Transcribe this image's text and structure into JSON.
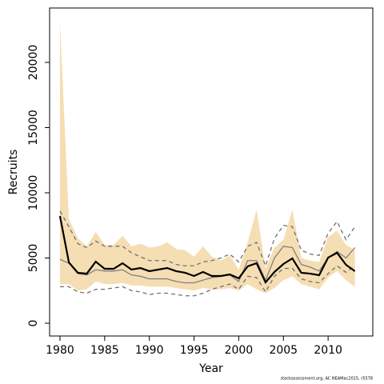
{
  "chart_data": {
    "type": "line",
    "xlabel": "Year",
    "ylabel": "Recruits",
    "footnote": "stockassessment.org, AC NEAMac2015, r5578",
    "x": [
      1980,
      1981,
      1982,
      1983,
      1984,
      1985,
      1986,
      1987,
      1988,
      1989,
      1990,
      1991,
      1992,
      1993,
      1994,
      1995,
      1996,
      1997,
      1998,
      1999,
      2000,
      2001,
      2002,
      2003,
      2004,
      2005,
      2006,
      2007,
      2008,
      2009,
      2010,
      2011,
      2012,
      2013
    ],
    "band": {
      "color": "#f5deb3",
      "upper": [
        23100,
        8000,
        6500,
        5900,
        7000,
        6000,
        6000,
        6700,
        5900,
        6100,
        5800,
        5900,
        6200,
        5700,
        5600,
        5100,
        5900,
        5100,
        4800,
        5200,
        4100,
        6200,
        8700,
        4200,
        5800,
        6400,
        8700,
        5000,
        4800,
        4700,
        6600,
        7100,
        6000,
        5600
      ],
      "lower": [
        3000,
        3000,
        2500,
        2600,
        3200,
        3000,
        3000,
        3100,
        2900,
        2900,
        2800,
        2800,
        2800,
        2700,
        2600,
        2500,
        2700,
        2600,
        2600,
        2700,
        2500,
        3000,
        2600,
        2300,
        2700,
        3300,
        3600,
        3000,
        2800,
        2600,
        3500,
        4000,
        3300,
        2800
      ]
    },
    "series": [
      {
        "color": "#808080",
        "dash": false,
        "width": 1.3,
        "values": [
          4900,
          4600,
          3800,
          3700,
          4100,
          4000,
          4000,
          4100,
          3700,
          3600,
          3400,
          3400,
          3400,
          3200,
          3100,
          3100,
          3300,
          3500,
          3600,
          3700,
          3200,
          4800,
          4800,
          3300,
          5000,
          5900,
          5800,
          4500,
          4300,
          4000,
          5000,
          5500,
          5000,
          5800
        ]
      },
      {
        "color": "#707070",
        "dash": true,
        "width": 1.3,
        "values": [
          8600,
          7400,
          6100,
          5800,
          6300,
          5900,
          5900,
          5900,
          5400,
          5100,
          4800,
          4800,
          4800,
          4500,
          4400,
          4400,
          4700,
          4800,
          5000,
          5300,
          4700,
          5900,
          6200,
          4400,
          6500,
          7500,
          7400,
          5600,
          5300,
          5200,
          6900,
          7800,
          6400,
          7400
        ]
      },
      {
        "color": "#707070",
        "dash": true,
        "width": 1.3,
        "values": [
          2800,
          2800,
          2400,
          2300,
          2600,
          2600,
          2700,
          2800,
          2500,
          2400,
          2200,
          2300,
          2300,
          2200,
          2100,
          2100,
          2300,
          2600,
          2800,
          3000,
          2600,
          3600,
          3500,
          2400,
          3600,
          4200,
          4200,
          3400,
          3200,
          3100,
          3800,
          4400,
          3900,
          4400
        ]
      },
      {
        "color": "#000000",
        "dash": false,
        "width": 2.2,
        "values": [
          8220,
          4660,
          3870,
          3800,
          4720,
          4170,
          4170,
          4600,
          4110,
          4230,
          3990,
          4110,
          4230,
          3990,
          3870,
          3620,
          3930,
          3620,
          3620,
          3740,
          3440,
          4360,
          4600,
          3130,
          3930,
          4540,
          4970,
          3870,
          3800,
          3680,
          5030,
          5400,
          4480,
          3990
        ]
      }
    ],
    "xlim": [
      1978.84,
      2015.0
    ],
    "xticks": [
      1980,
      1985,
      1990,
      1995,
      2000,
      2005,
      2010
    ],
    "ylim": [
      -982,
      24172
    ],
    "yticks": [
      0,
      5000,
      10000,
      15000,
      20000
    ]
  }
}
